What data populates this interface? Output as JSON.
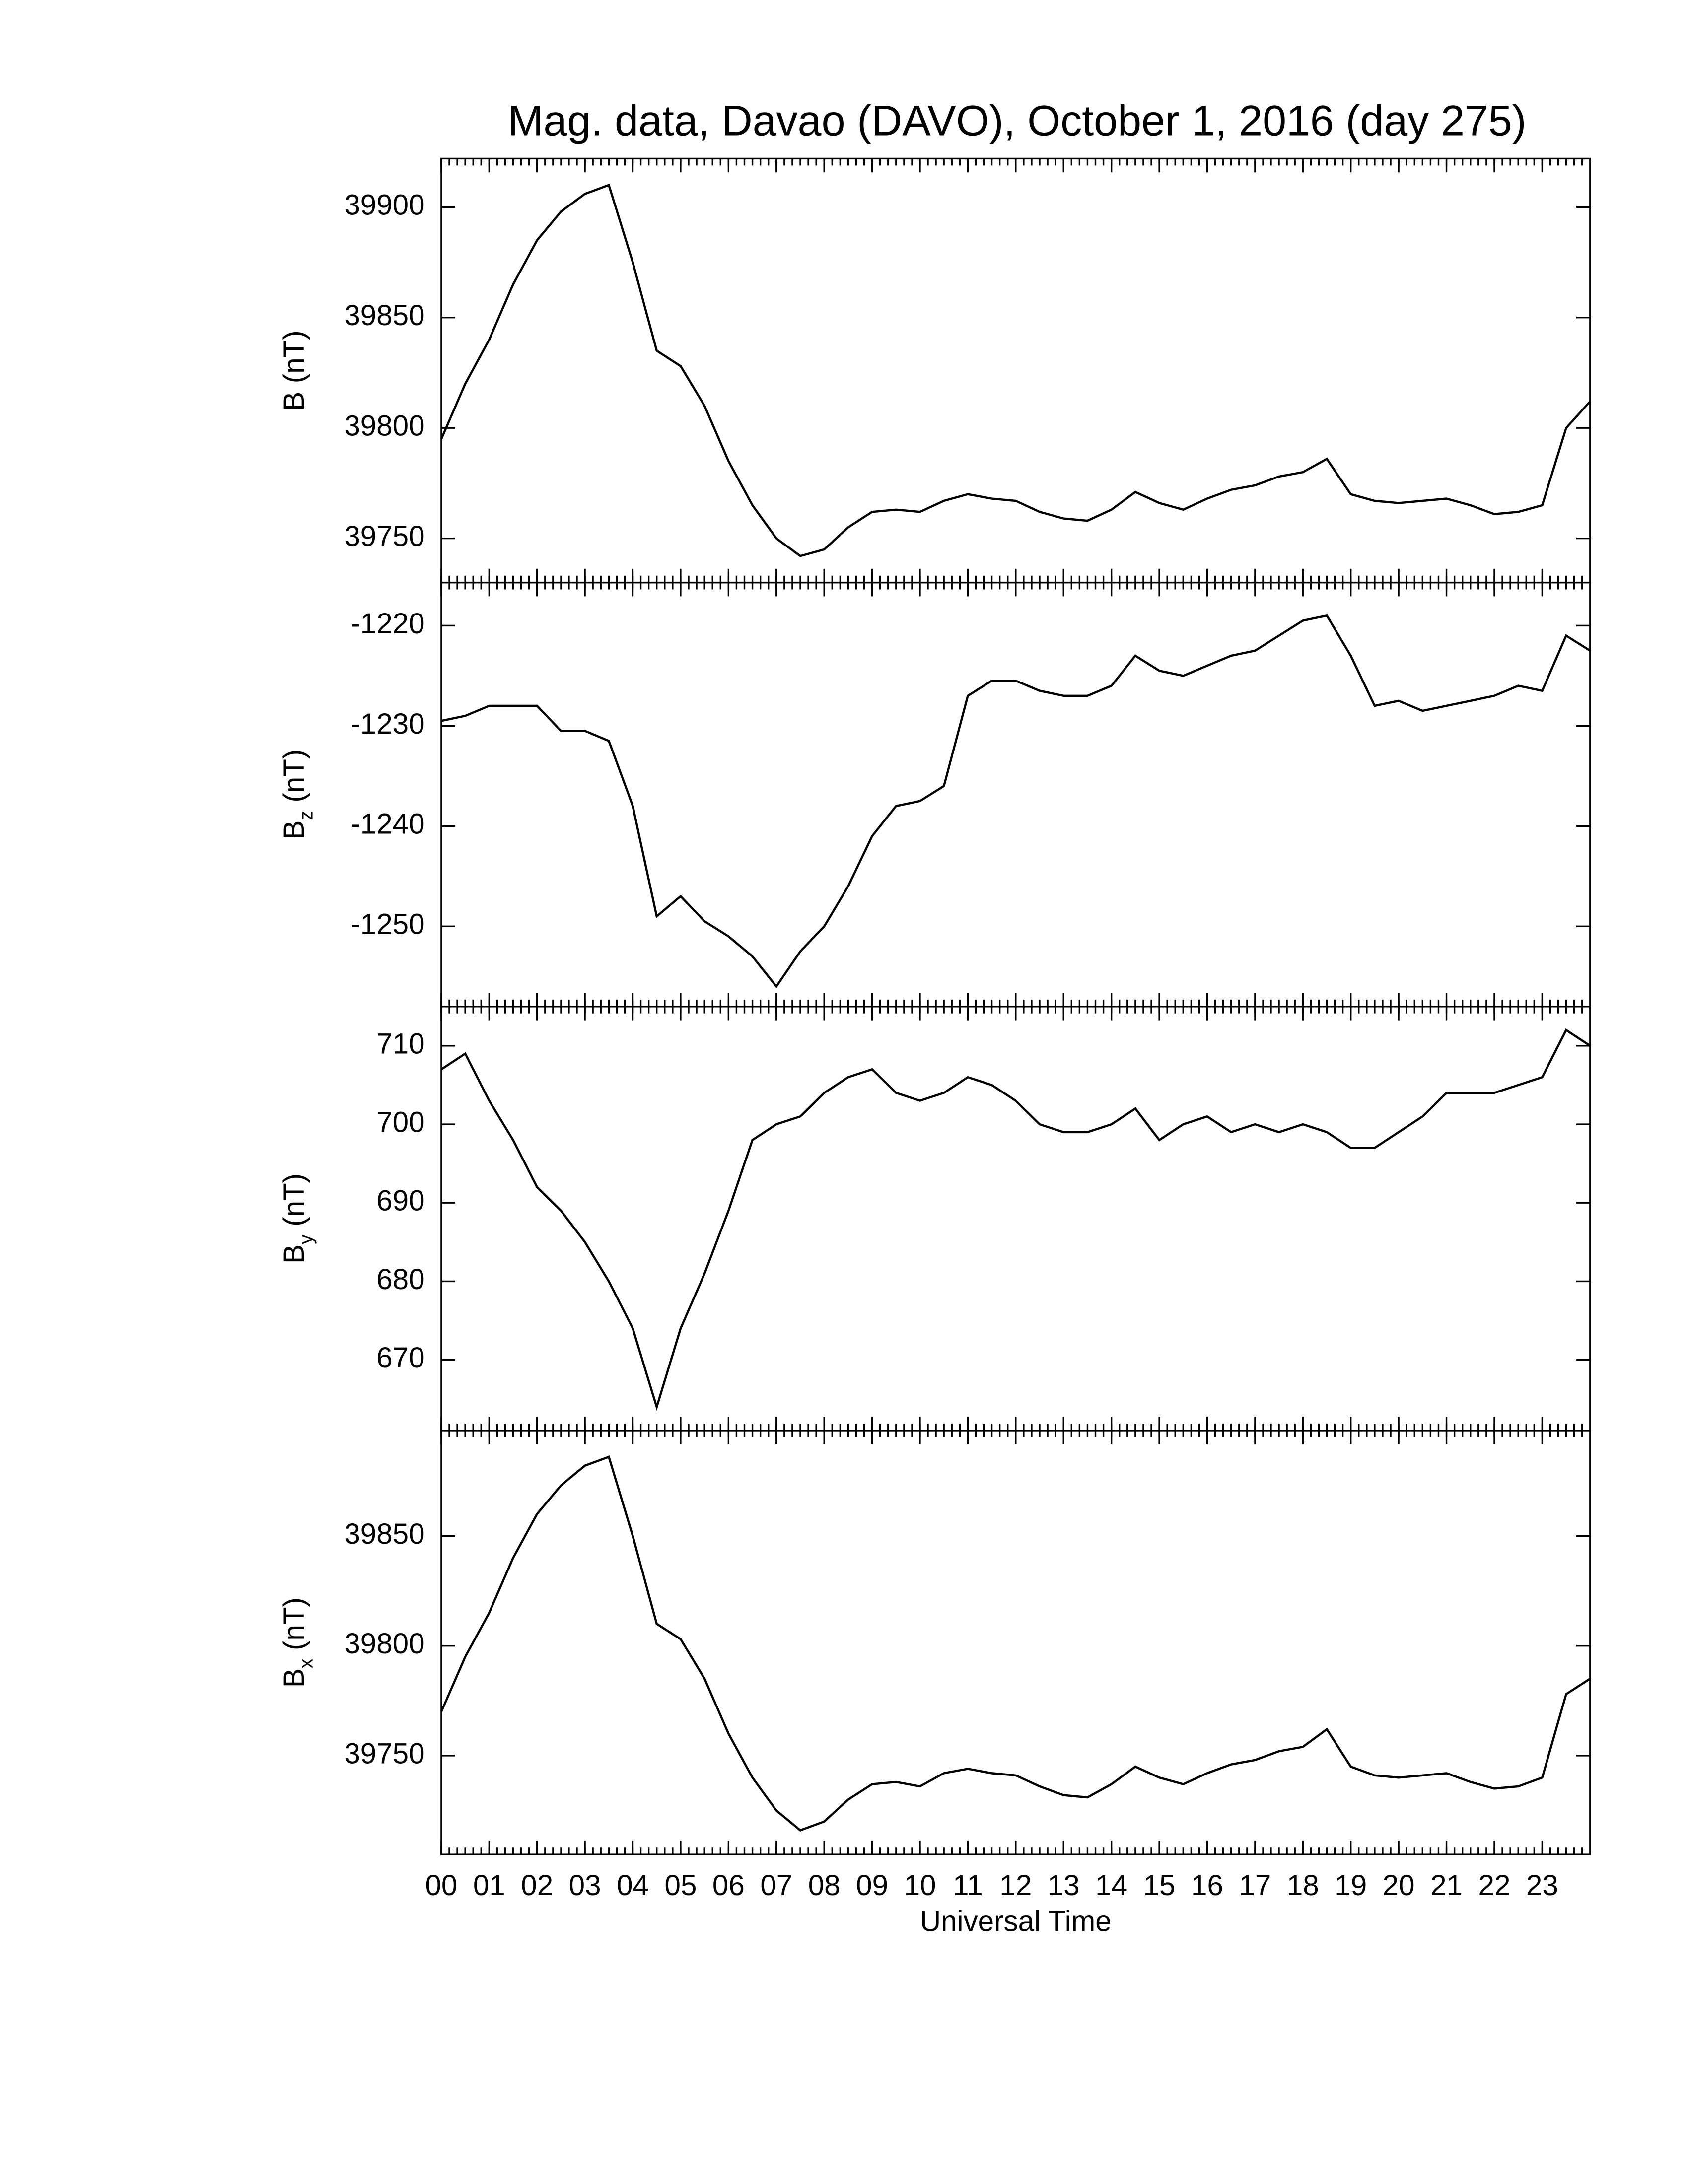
{
  "chart_data": [
    {
      "type": "line",
      "title": "Mag. data, Davao (DAVO), October 1, 2016 (day 275)",
      "ylabel": {
        "base": "B",
        "unit": "(nT)"
      },
      "x": [
        0,
        0.5,
        1,
        1.5,
        2,
        2.5,
        3,
        3.5,
        4,
        4.5,
        5,
        5.5,
        6,
        6.5,
        7,
        7.5,
        8,
        8.5,
        9,
        9.5,
        10,
        10.5,
        11,
        11.5,
        12,
        12.5,
        13,
        13.5,
        14,
        14.5,
        15,
        15.5,
        16,
        16.5,
        17,
        17.5,
        18,
        18.5,
        19,
        19.5,
        20,
        20.5,
        21,
        21.5,
        22,
        22.5,
        23,
        23.5,
        24
      ],
      "values": [
        39795,
        39820,
        39840,
        39865,
        39885,
        39898,
        39906,
        39910,
        39875,
        39835,
        39828,
        39810,
        39785,
        39765,
        39750,
        39742,
        39745,
        39755,
        39762,
        39763,
        39762,
        39767,
        39770,
        39768,
        39767,
        39762,
        39759,
        39758,
        39763,
        39771,
        39766,
        39763,
        39768,
        39772,
        39774,
        39778,
        39780,
        39786,
        39770,
        39767,
        39766,
        39767,
        39768,
        39765,
        39761,
        39762,
        39765,
        39800,
        39812
      ],
      "color": "#000000",
      "xlim": [
        0,
        24
      ],
      "xticks": [
        0,
        1,
        2,
        3,
        4,
        5,
        6,
        7,
        8,
        9,
        10,
        11,
        12,
        13,
        14,
        15,
        16,
        17,
        18,
        19,
        20,
        21,
        22,
        23
      ],
      "ylim": [
        39730,
        39922
      ],
      "yticks": [
        39750,
        39800,
        39850,
        39900
      ]
    },
    {
      "type": "line",
      "ylabel": {
        "base": "B",
        "sub": "z",
        "unit": "(nT)"
      },
      "x": [
        0,
        0.5,
        1,
        1.5,
        2,
        2.5,
        3,
        3.5,
        4,
        4.5,
        5,
        5.5,
        6,
        6.5,
        7,
        7.5,
        8,
        8.5,
        9,
        9.5,
        10,
        10.5,
        11,
        11.5,
        12,
        12.5,
        13,
        13.5,
        14,
        14.5,
        15,
        15.5,
        16,
        16.5,
        17,
        17.5,
        18,
        18.5,
        19,
        19.5,
        20,
        20.5,
        21,
        21.5,
        22,
        22.5,
        23,
        23.5,
        24
      ],
      "values": [
        -1229.5,
        -1229,
        -1228,
        -1228,
        -1228,
        -1230.5,
        -1230.5,
        -1231.5,
        -1238,
        -1249,
        -1247,
        -1249.5,
        -1251,
        -1253,
        -1256,
        -1252.5,
        -1250,
        -1246,
        -1241,
        -1238,
        -1237.5,
        -1236,
        -1227,
        -1225.5,
        -1225.5,
        -1226.5,
        -1227,
        -1227,
        -1226,
        -1223,
        -1224.5,
        -1225,
        -1224,
        -1223,
        -1222.5,
        -1221,
        -1219.5,
        -1219,
        -1223,
        -1228,
        -1227.5,
        -1228.5,
        -1228,
        -1227.5,
        -1227,
        -1226,
        -1226.5,
        -1221,
        -1222.5
      ],
      "color": "#000000",
      "xlim": [
        0,
        24
      ],
      "xticks": [
        0,
        1,
        2,
        3,
        4,
        5,
        6,
        7,
        8,
        9,
        10,
        11,
        12,
        13,
        14,
        15,
        16,
        17,
        18,
        19,
        20,
        21,
        22,
        23
      ],
      "ylim": [
        -1258,
        -1215.7
      ],
      "yticks": [
        -1250,
        -1240,
        -1230,
        -1220
      ]
    },
    {
      "type": "line",
      "ylabel": {
        "base": "B",
        "sub": "y",
        "unit": "(nT)"
      },
      "x": [
        0,
        0.5,
        1,
        1.5,
        2,
        2.5,
        3,
        3.5,
        4,
        4.5,
        5,
        5.5,
        6,
        6.5,
        7,
        7.5,
        8,
        8.5,
        9,
        9.5,
        10,
        10.5,
        11,
        11.5,
        12,
        12.5,
        13,
        13.5,
        14,
        14.5,
        15,
        15.5,
        16,
        16.5,
        17,
        17.5,
        18,
        18.5,
        19,
        19.5,
        20,
        20.5,
        21,
        21.5,
        22,
        22.5,
        23,
        23.5,
        24
      ],
      "values": [
        707,
        709,
        703,
        698,
        692,
        689,
        685,
        680,
        674,
        664,
        674,
        681,
        689,
        698,
        700,
        701,
        704,
        706,
        707,
        704,
        703,
        704,
        706,
        705,
        703,
        700,
        699,
        699,
        700,
        702,
        698,
        700,
        701,
        699,
        700,
        699,
        700,
        699,
        697,
        697,
        699,
        701,
        704,
        704,
        704,
        705,
        706,
        712,
        710
      ],
      "color": "#000000",
      "xlim": [
        0,
        24
      ],
      "xticks": [
        0,
        1,
        2,
        3,
        4,
        5,
        6,
        7,
        8,
        9,
        10,
        11,
        12,
        13,
        14,
        15,
        16,
        17,
        18,
        19,
        20,
        21,
        22,
        23
      ],
      "ylim": [
        661,
        715
      ],
      "yticks": [
        670,
        680,
        690,
        700,
        710
      ]
    },
    {
      "type": "line",
      "xlabel": "Universal Time",
      "ylabel": {
        "base": "B",
        "sub": "x",
        "unit": "(nT)"
      },
      "x": [
        0,
        0.5,
        1,
        1.5,
        2,
        2.5,
        3,
        3.5,
        4,
        4.5,
        5,
        5.5,
        6,
        6.5,
        7,
        7.5,
        8,
        8.5,
        9,
        9.5,
        10,
        10.5,
        11,
        11.5,
        12,
        12.5,
        13,
        13.5,
        14,
        14.5,
        15,
        15.5,
        16,
        16.5,
        17,
        17.5,
        18,
        18.5,
        19,
        19.5,
        20,
        20.5,
        21,
        21.5,
        22,
        22.5,
        23,
        23.5,
        24
      ],
      "values": [
        39770,
        39795,
        39815,
        39840,
        39860,
        39873,
        39882,
        39886,
        39850,
        39810,
        39803,
        39785,
        39760,
        39740,
        39725,
        39716,
        39720,
        39730,
        39737,
        39738,
        39736,
        39742,
        39744,
        39742,
        39741,
        39736,
        39732,
        39731,
        39737,
        39745,
        39740,
        39737,
        39742,
        39746,
        39748,
        39752,
        39754,
        39762,
        39745,
        39741,
        39740,
        39741,
        39742,
        39738,
        39735,
        39736,
        39740,
        39778,
        39785
      ],
      "color": "#000000",
      "xlim": [
        0,
        24
      ],
      "xticks": [
        {
          "value": 0,
          "label": "00"
        },
        {
          "value": 1,
          "label": "01"
        },
        {
          "value": 2,
          "label": "02"
        },
        {
          "value": 3,
          "label": "03"
        },
        {
          "value": 4,
          "label": "04"
        },
        {
          "value": 5,
          "label": "05"
        },
        {
          "value": 6,
          "label": "06"
        },
        {
          "value": 7,
          "label": "07"
        },
        {
          "value": 8,
          "label": "08"
        },
        {
          "value": 9,
          "label": "09"
        },
        10,
        11,
        12,
        13,
        14,
        15,
        16,
        17,
        18,
        19,
        20,
        21,
        22,
        23
      ],
      "ylim": [
        39705,
        39898
      ],
      "yticks": [
        39750,
        39800,
        39850
      ]
    }
  ]
}
